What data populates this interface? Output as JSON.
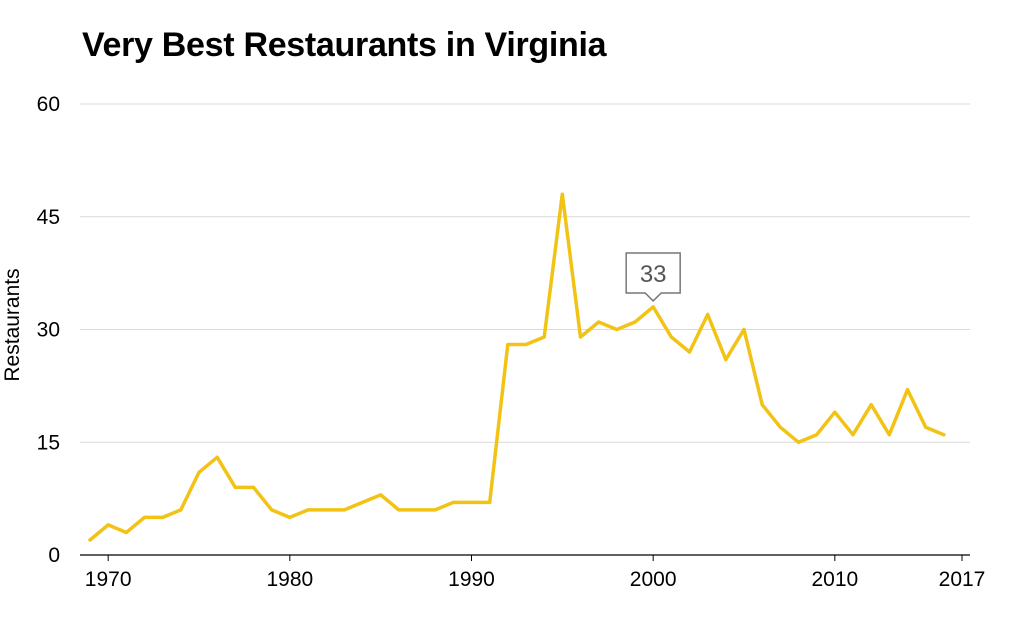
{
  "chart_data": {
    "type": "line",
    "title": "Very Best Restaurants in Virginia",
    "xlabel": "",
    "ylabel": "Restaurants",
    "xlim": [
      1969,
      2017
    ],
    "ylim": [
      0,
      60
    ],
    "x_ticks": [
      1970,
      1980,
      1990,
      2000,
      2010,
      2017
    ],
    "y_ticks": [
      0,
      15,
      30,
      45,
      60
    ],
    "grid": true,
    "legend": "none",
    "colors": {
      "line": "#F2C314",
      "grid": "#d9d9d9",
      "axis": "#000000",
      "callout_border": "#777777",
      "callout_text": "#555555"
    },
    "series": [
      {
        "x": [
          1969,
          1970,
          1971,
          1972,
          1973,
          1974,
          1975,
          1976,
          1977,
          1978,
          1979,
          1980,
          1981,
          1982,
          1983,
          1984,
          1985,
          1986,
          1987,
          1988,
          1989,
          1990,
          1991,
          1992,
          1993,
          1994,
          1995,
          1996,
          1997,
          1998,
          1999,
          2000,
          2001,
          2002,
          2003,
          2004,
          2005,
          2006,
          2007,
          2008,
          2009,
          2010,
          2011,
          2012,
          2013,
          2014,
          2015,
          2016
        ],
        "values": [
          2,
          4,
          3,
          5,
          5,
          6,
          11,
          13,
          9,
          9,
          6,
          5,
          6,
          6,
          6,
          7,
          8,
          6,
          6,
          6,
          7,
          7,
          7,
          28,
          28,
          29,
          48,
          29,
          31,
          30,
          31,
          33,
          29,
          27,
          32,
          26,
          30,
          20,
          17,
          15,
          16,
          19,
          16,
          20,
          16,
          22,
          17,
          16
        ]
      }
    ],
    "annotations": [
      {
        "x": 2000,
        "y": 33,
        "text": "33"
      }
    ]
  }
}
